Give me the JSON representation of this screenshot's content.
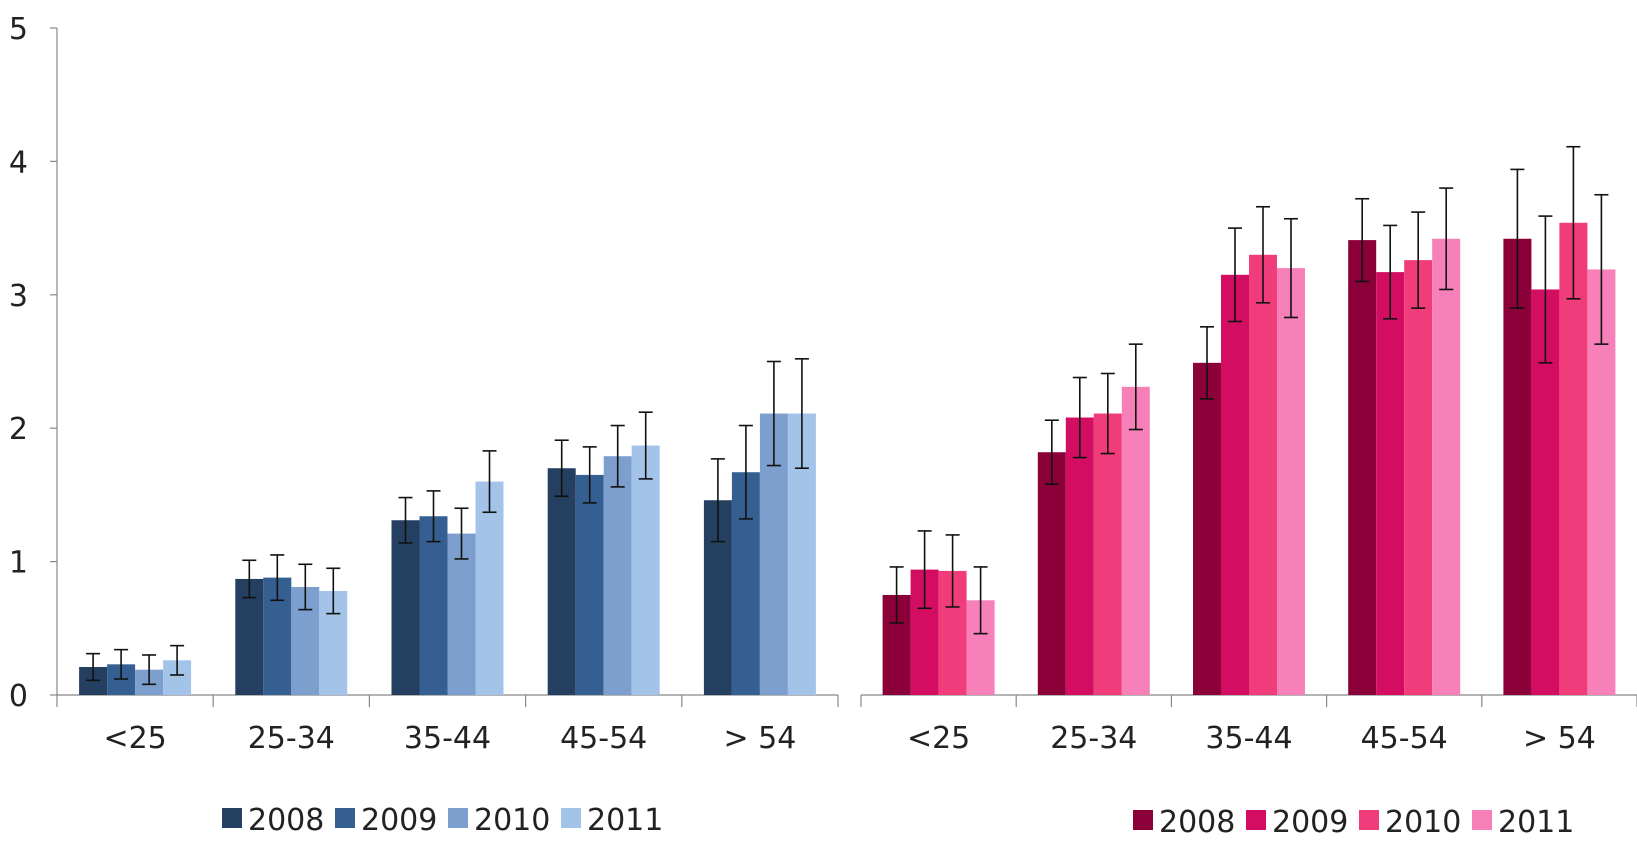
{
  "chart_data": [
    {
      "type": "bar",
      "categories": [
        "<25",
        "25-34",
        "35-44",
        "45-54",
        "> 54"
      ],
      "ylim": [
        0,
        5
      ],
      "yticks": [
        "0",
        "1",
        "2",
        "3",
        "4",
        "5"
      ],
      "grid": false,
      "legend_position": "bottom",
      "series": [
        {
          "name": "2008",
          "color": "#243f60",
          "values": [
            0.21,
            0.87,
            1.31,
            1.7,
            1.46
          ],
          "error": [
            0.1,
            0.14,
            0.17,
            0.21,
            0.31
          ]
        },
        {
          "name": "2009",
          "color": "#365f91",
          "values": [
            0.23,
            0.88,
            1.34,
            1.65,
            1.67
          ],
          "error": [
            0.11,
            0.17,
            0.19,
            0.21,
            0.35
          ]
        },
        {
          "name": "2010",
          "color": "#7c9fcd",
          "values": [
            0.19,
            0.81,
            1.21,
            1.79,
            2.11
          ],
          "error": [
            0.11,
            0.17,
            0.19,
            0.23,
            0.39
          ]
        },
        {
          "name": "2011",
          "color": "#a3c4e8",
          "values": [
            0.26,
            0.78,
            1.6,
            1.87,
            2.11
          ],
          "error": [
            0.11,
            0.17,
            0.23,
            0.25,
            0.41
          ]
        }
      ]
    },
    {
      "type": "bar",
      "categories": [
        "<25",
        "25-34",
        "35-44",
        "45-54",
        "> 54"
      ],
      "ylim": [
        0,
        5
      ],
      "grid": false,
      "legend_position": "bottom-right",
      "series": [
        {
          "name": "2008",
          "color": "#8b0038",
          "values": [
            0.75,
            1.82,
            2.49,
            3.41,
            3.42
          ],
          "error": [
            0.21,
            0.24,
            0.27,
            0.31,
            0.52
          ]
        },
        {
          "name": "2009",
          "color": "#d30e62",
          "values": [
            0.94,
            2.08,
            3.15,
            3.17,
            3.04
          ],
          "error": [
            0.29,
            0.3,
            0.35,
            0.35,
            0.55
          ]
        },
        {
          "name": "2010",
          "color": "#f03c7a",
          "values": [
            0.93,
            2.11,
            3.3,
            3.26,
            3.54
          ],
          "error": [
            0.27,
            0.3,
            0.36,
            0.36,
            0.57
          ]
        },
        {
          "name": "2011",
          "color": "#f780b8",
          "values": [
            0.71,
            2.31,
            3.2,
            3.42,
            3.19
          ],
          "error": [
            0.25,
            0.32,
            0.37,
            0.38,
            0.56
          ]
        }
      ]
    }
  ]
}
